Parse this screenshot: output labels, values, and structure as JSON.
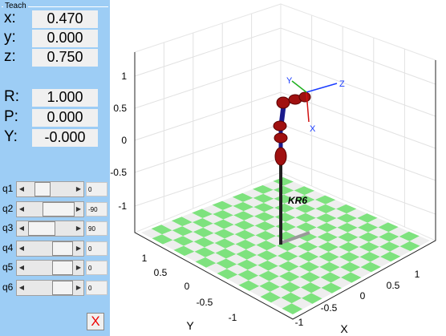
{
  "panel": {
    "title": "Teach",
    "position": [
      {
        "label": "x:",
        "value": "0.470"
      },
      {
        "label": "y:",
        "value": "0.000"
      },
      {
        "label": "z:",
        "value": "0.750"
      }
    ],
    "orientation": [
      {
        "label": "R:",
        "value": "1.000"
      },
      {
        "label": "P:",
        "value": "0.000"
      },
      {
        "label": "Y:",
        "value": "-0.000"
      }
    ],
    "joints": [
      {
        "label": "q1",
        "value": "0"
      },
      {
        "label": "q2",
        "value": "-90"
      },
      {
        "label": "q3",
        "value": "90"
      },
      {
        "label": "q4",
        "value": "0"
      },
      {
        "label": "q5",
        "value": "0"
      },
      {
        "label": "q6",
        "value": "0"
      }
    ],
    "close": "X"
  },
  "plot": {
    "z_ticks": [
      "1",
      "0.5",
      "0",
      "-0.5",
      "-1"
    ],
    "y_ticks": [
      "1",
      "0.5",
      "0",
      "-0.5",
      "-1"
    ],
    "x_ticks": [
      "-1",
      "-0.5",
      "0",
      "0.5",
      "1"
    ],
    "x_label": "X",
    "y_label": "Y",
    "robot_name": "KR6",
    "frame_labels": [
      "X",
      "Y",
      "Z"
    ]
  }
}
